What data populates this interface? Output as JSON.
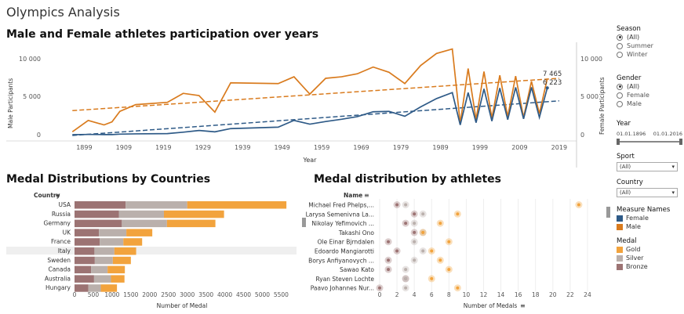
{
  "dashboard": {
    "title": "Olympics Analysis"
  },
  "line_chart": {
    "title": "Male and Female athletes participation over years",
    "y_left_label": "Male Participants",
    "y_right_label": "Female Participants",
    "x_label": "Year",
    "y_ticks": [
      "10 000",
      "5 000",
      "0"
    ],
    "x_ticks": [
      "1899",
      "1909",
      "1919",
      "1929",
      "1939",
      "1949",
      "1959",
      "1969",
      "1979",
      "1989",
      "1999",
      "2009",
      "2019"
    ],
    "annotation_top": "7 465",
    "annotation_bottom": "6 223"
  },
  "bar_chart": {
    "title": "Medal Distributions by Countries",
    "column_header": "Country",
    "x_label": "Number of Medal",
    "x_ticks": [
      "0",
      "500",
      "1000",
      "1500",
      "2000",
      "2500",
      "3000",
      "3500",
      "4000",
      "4500",
      "5000",
      "5500"
    ],
    "highlighted_row": "Italy"
  },
  "dot_chart": {
    "title": "Medal distribution by athletes",
    "column_header": "Name",
    "x_label": "Number of Medals",
    "x_ticks": [
      "0",
      "2",
      "4",
      "6",
      "8",
      "10",
      "12",
      "14",
      "16",
      "18",
      "20",
      "22",
      "24"
    ]
  },
  "filters": {
    "season": {
      "label": "Season",
      "options": [
        "(All)",
        "Summer",
        "Winter"
      ],
      "selected": "(All)"
    },
    "gender": {
      "label": "Gender",
      "options": [
        "(All)",
        "Female",
        "Male"
      ],
      "selected": "(All)"
    },
    "year": {
      "label": "Year",
      "from": "01.01.1896",
      "to": "01.01.2016"
    },
    "sport": {
      "label": "Sport",
      "value": "(All)"
    },
    "country": {
      "label": "Country",
      "value": "(All)"
    }
  },
  "legends": {
    "measure_names": {
      "title": "Measure Names",
      "items": [
        {
          "label": "Female",
          "color": "#2e5a87"
        },
        {
          "label": "Male",
          "color": "#d97b1e"
        }
      ]
    },
    "medal": {
      "title": "Medal",
      "items": [
        {
          "label": "Gold",
          "color": "#f2a33d"
        },
        {
          "label": "Silver",
          "color": "#bab0ac"
        },
        {
          "label": "Bronze",
          "color": "#9c7373"
        }
      ]
    }
  },
  "chart_data": [
    {
      "type": "line",
      "title": "Male and Female athletes participation over years",
      "xlabel": "Year",
      "ylabel": "Male Participants",
      "ylim": [
        0,
        12000
      ],
      "series": [
        {
          "name": "Male",
          "x": [
            1896,
            1900,
            1904,
            1906,
            1908,
            1912,
            1920,
            1924,
            1928,
            1932,
            1936,
            1948,
            1952,
            1956,
            1960,
            1964,
            1968,
            1972,
            1976,
            1980,
            1984,
            1988,
            1992,
            1994,
            1996,
            1998,
            2000,
            2002,
            2004,
            2006,
            2008,
            2010,
            2012,
            2014,
            2016
          ],
          "values": [
            380,
            1900,
            1300,
            1700,
            3100,
            4000,
            4300,
            5500,
            5200,
            3000,
            6900,
            6800,
            7700,
            5400,
            7500,
            7700,
            8100,
            9000,
            8300,
            6800,
            9200,
            10800,
            11400,
            1500,
            8800,
            2000,
            8400,
            2200,
            7900,
            2400,
            7800,
            2300,
            7100,
            2800,
            7465
          ]
        },
        {
          "name": "Female",
          "x": [
            1896,
            1900,
            1904,
            1906,
            1908,
            1912,
            1920,
            1924,
            1928,
            1932,
            1936,
            1948,
            1952,
            1956,
            1960,
            1964,
            1968,
            1972,
            1976,
            1980,
            1984,
            1988,
            1992,
            1994,
            1996,
            1998,
            2000,
            2002,
            2004,
            2006,
            2008,
            2010,
            2012,
            2014,
            2016
          ],
          "values": [
            0,
            30,
            15,
            10,
            70,
            110,
            140,
            330,
            560,
            380,
            810,
            1000,
            1900,
            1400,
            1750,
            2050,
            2400,
            3050,
            3100,
            2450,
            3700,
            4800,
            5600,
            1300,
            5600,
            1600,
            6100,
            1800,
            6200,
            2000,
            6300,
            2100,
            6300,
            2300,
            6223
          ]
        }
      ],
      "trend_lines": [
        {
          "name": "Male trend",
          "x": [
            1896,
            2019
          ],
          "values": [
            3200,
            7500
          ]
        },
        {
          "name": "Female trend",
          "x": [
            1896,
            2019
          ],
          "values": [
            -100,
            4500
          ]
        }
      ]
    },
    {
      "type": "bar",
      "title": "Medal Distributions by Countries",
      "xlabel": "Number of Medal",
      "xlim": [
        0,
        5700
      ],
      "categories": [
        "USA",
        "Russia",
        "Germany",
        "UK",
        "France",
        "Italy",
        "Sweden",
        "Canada",
        "Australia",
        "Hungary"
      ],
      "series": [
        {
          "name": "Bronze",
          "values": [
            1360,
            1180,
            1260,
            650,
            670,
            530,
            540,
            440,
            520,
            370
          ]
        },
        {
          "name": "Silver",
          "values": [
            1640,
            1200,
            1200,
            730,
            630,
            530,
            480,
            440,
            450,
            330
          ]
        },
        {
          "name": "Gold",
          "values": [
            2640,
            1600,
            1290,
            690,
            500,
            580,
            480,
            460,
            360,
            430
          ]
        }
      ]
    },
    {
      "type": "scatter",
      "title": "Medal distribution by athletes",
      "xlabel": "Number of Medals",
      "xlim": [
        0,
        25
      ],
      "categories": [
        "Michael Fred Phelps,...",
        "Larysa Semenivna La...",
        "Nikolay Yefimovich ...",
        "Takashi Ono",
        "Ole Einar Bjrndalen",
        "Edoardo Mangiarotti",
        "Borys Anfiyanovych ...",
        "Sawao Kato",
        "Ryan Steven Lochte",
        "Paavo Johannes Nur..."
      ],
      "series": [
        {
          "name": "Bronze",
          "values": [
            2,
            4,
            3,
            4,
            1,
            2,
            1,
            1,
            3,
            0
          ]
        },
        {
          "name": "Silver",
          "values": [
            3,
            5,
            4,
            5,
            4,
            5,
            4,
            3,
            3,
            3
          ]
        },
        {
          "name": "Gold",
          "values": [
            23,
            9,
            7,
            5,
            8,
            6,
            7,
            8,
            6,
            9
          ]
        }
      ]
    }
  ]
}
